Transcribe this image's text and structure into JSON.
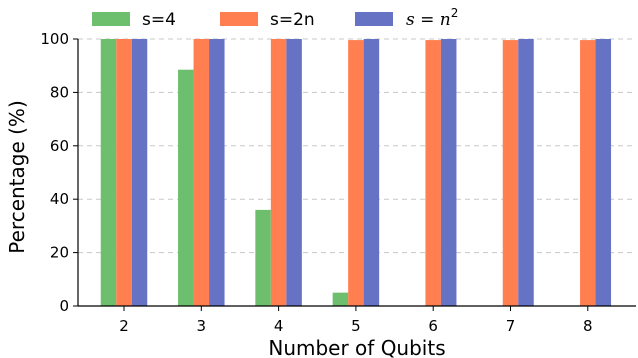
{
  "chart_data": {
    "type": "bar",
    "xlabel": "Number of Qubits",
    "ylabel": "Percentage (%)",
    "categories": [
      "2",
      "3",
      "4",
      "5",
      "6",
      "7",
      "8"
    ],
    "ylim": [
      0,
      100
    ],
    "yticks": [
      "0",
      "20",
      "40",
      "60",
      "80",
      "100"
    ],
    "grid": "y dashed",
    "legend_position": "top",
    "series": [
      {
        "name": "s=4",
        "color": "#6dbf6d",
        "values": [
          100,
          88.5,
          36,
          5,
          0,
          0,
          0
        ]
      },
      {
        "name": "s=2n",
        "color": "#ff7f50",
        "values": [
          100,
          100,
          100,
          99.6,
          99.6,
          99.6,
          99.6
        ]
      },
      {
        "name": "s = n²",
        "legend_var": "s",
        "legend_eq": " = ",
        "legend_base": "n",
        "legend_sup": "2",
        "color": "#6673c5",
        "values": [
          100,
          100,
          100,
          100,
          100,
          100,
          100
        ]
      }
    ]
  }
}
